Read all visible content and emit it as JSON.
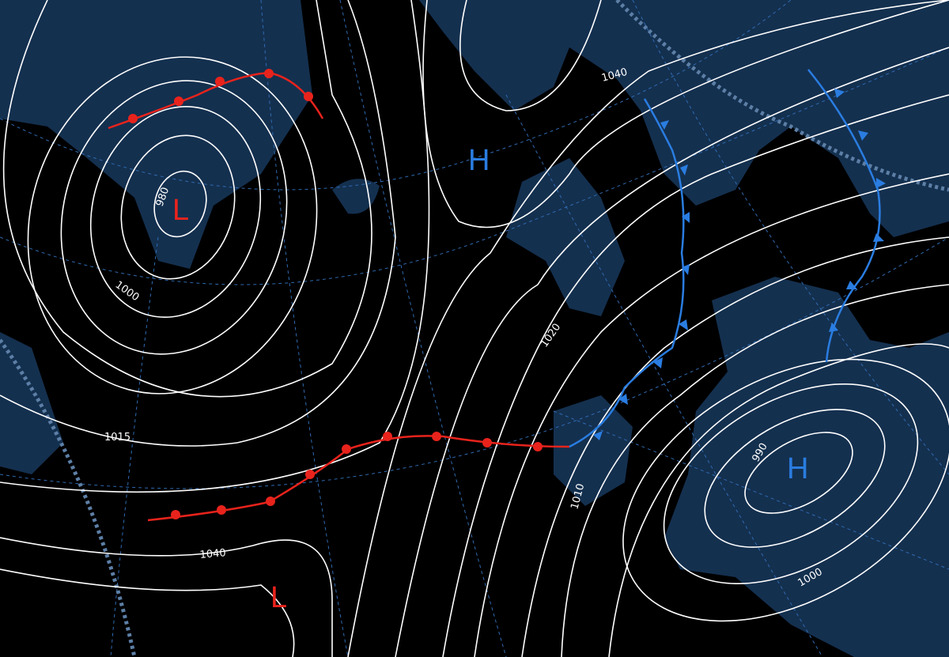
{
  "colors": {
    "background": "#000000",
    "land": "#14304f",
    "isobar": "#ffffff",
    "graticule": "#2f6ab0",
    "low": "#e8231c",
    "high": "#2a7de1",
    "warm_front": "#e8231c",
    "cold_front": "#2a7de1"
  },
  "pressure_centers": [
    {
      "label": "L",
      "type": "low"
    },
    {
      "label": "H",
      "type": "high"
    },
    {
      "label": "H",
      "type": "high"
    },
    {
      "label": "L",
      "type": "low"
    }
  ],
  "isobar_labels": [
    "980",
    "1000",
    "1015",
    "1040",
    "1040",
    "1020",
    "1010",
    "990",
    "1000"
  ],
  "fronts": [
    {
      "type": "warm"
    },
    {
      "type": "warm"
    },
    {
      "type": "cold"
    },
    {
      "type": "cold"
    }
  ]
}
